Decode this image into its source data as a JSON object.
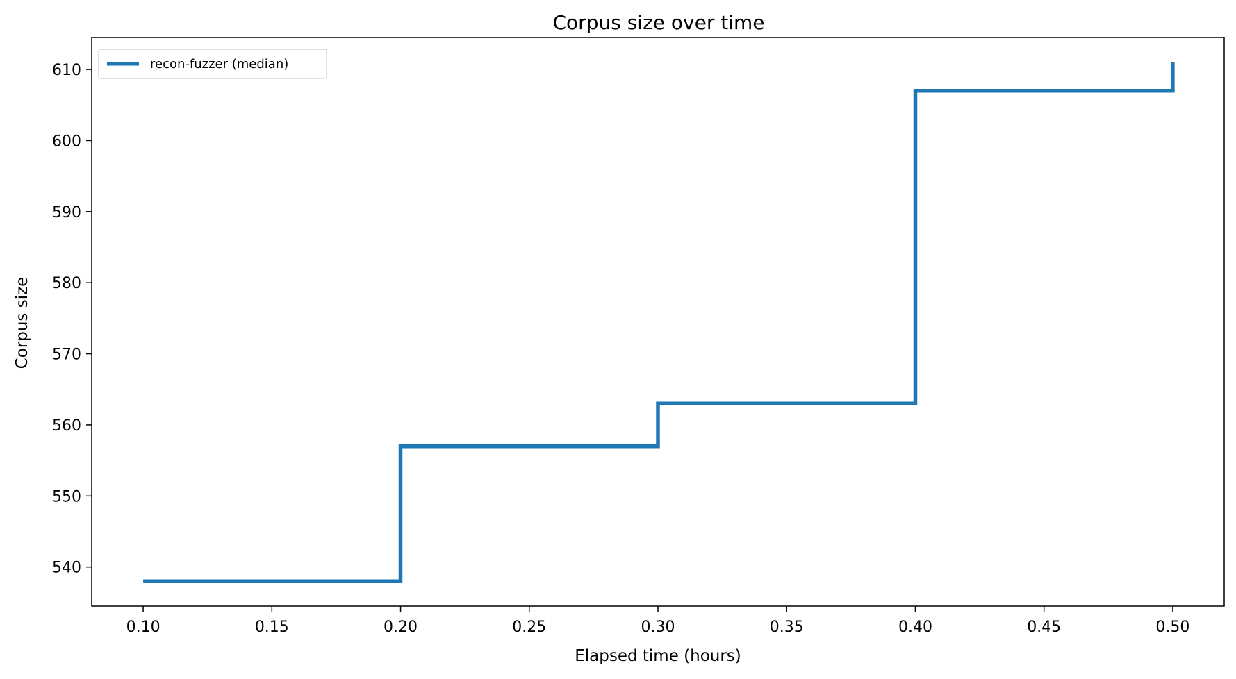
{
  "chart_data": {
    "type": "line",
    "title": "Corpus size over time",
    "xlabel": "Elapsed time (hours)",
    "ylabel": "Corpus size",
    "xlim": [
      0.08,
      0.52
    ],
    "ylim": [
      534.5,
      614.5
    ],
    "x_ticks": [
      "0.10",
      "0.15",
      "0.20",
      "0.25",
      "0.30",
      "0.35",
      "0.40",
      "0.45",
      "0.50"
    ],
    "y_ticks": [
      "540",
      "550",
      "560",
      "570",
      "580",
      "590",
      "600",
      "610"
    ],
    "grid": false,
    "legend_position": "upper-left",
    "series": [
      {
        "name": "recon-fuzzer (median)",
        "color": "#1f77b4",
        "step": "post",
        "x": [
          0.1,
          0.2,
          0.2,
          0.3,
          0.3,
          0.4,
          0.4,
          0.5,
          0.5
        ],
        "y": [
          538,
          538,
          557,
          557,
          563,
          563,
          607,
          607,
          611
        ]
      }
    ]
  }
}
